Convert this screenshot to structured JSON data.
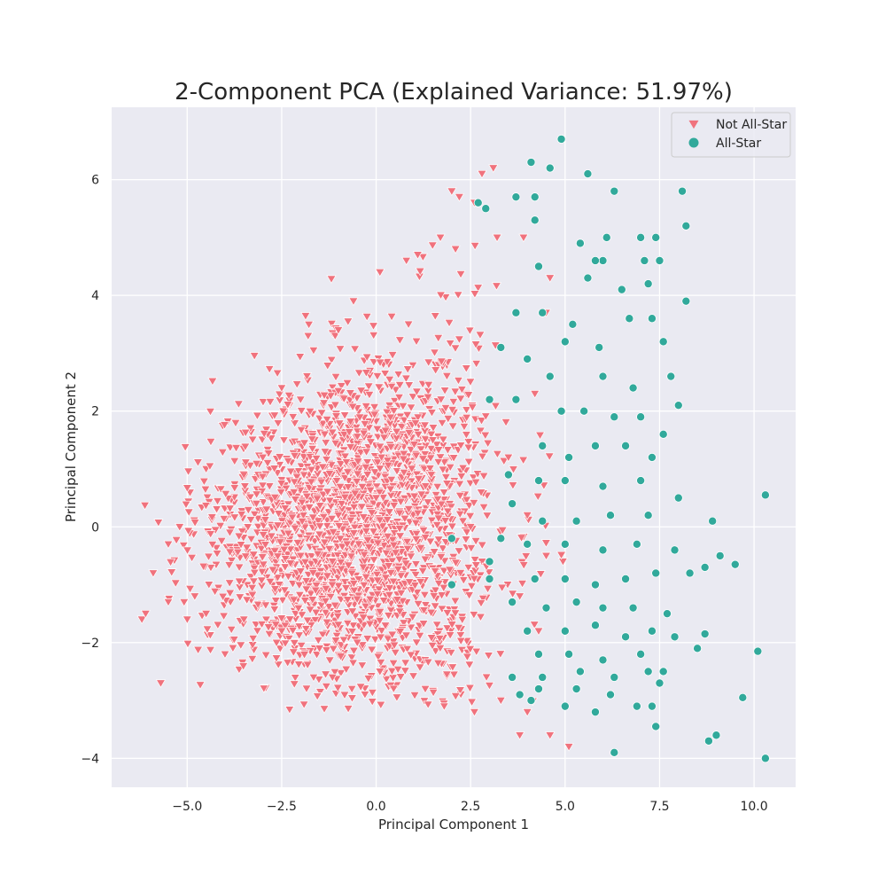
{
  "chart_data": {
    "type": "scatter",
    "title": "2-Component PCA (Explained Variance: 51.97%)",
    "xlabel": "Principal Component 1",
    "ylabel": "Principal Component 2",
    "xlim": [
      -7.0,
      11.1
    ],
    "ylim": [
      -4.5,
      7.25
    ],
    "x_ticks": [
      -5.0,
      -2.5,
      0.0,
      2.5,
      5.0,
      7.5,
      10.0
    ],
    "x_tick_labels": [
      "−5.0",
      "−2.5",
      "0.0",
      "2.5",
      "5.0",
      "7.5",
      "10.0"
    ],
    "y_ticks": [
      -4,
      -2,
      0,
      2,
      4,
      6
    ],
    "y_tick_labels": [
      "−4",
      "−2",
      "0",
      "2",
      "4",
      "6"
    ],
    "grid": true,
    "legend_position": "top-right",
    "series": [
      {
        "name": "Not All-Star",
        "marker": "triangle-down",
        "color": "#f0727d",
        "points": [
          [
            -6.2,
            -1.6
          ],
          [
            -6.1,
            -1.5
          ],
          [
            -5.7,
            -2.7
          ],
          [
            -5.9,
            -0.8
          ],
          [
            -5.5,
            -1.3
          ],
          [
            -5.0,
            -1.6
          ],
          [
            -4.0,
            -2.2
          ],
          [
            -5.5,
            -0.3
          ],
          [
            -5.2,
            0.0
          ],
          [
            -4.5,
            1.0
          ],
          [
            -4.4,
            1.05
          ],
          [
            -3.5,
            0.9
          ],
          [
            -3.0,
            1.2
          ],
          [
            -2.5,
            2.4
          ],
          [
            -2.2,
            1.9
          ],
          [
            -2.0,
            2.2
          ],
          [
            -1.0,
            3.4
          ],
          [
            -0.6,
            3.9
          ],
          [
            0.1,
            4.4
          ],
          [
            0.8,
            4.6
          ],
          [
            1.1,
            4.7
          ],
          [
            1.7,
            5.0
          ],
          [
            2.0,
            5.8
          ],
          [
            2.2,
            5.7
          ],
          [
            2.1,
            4.8
          ],
          [
            3.1,
            6.2
          ],
          [
            2.8,
            6.1
          ],
          [
            2.6,
            5.6
          ],
          [
            3.2,
            5.0
          ],
          [
            -0.5,
            -2.0
          ],
          [
            0.1,
            -2.5
          ],
          [
            1.3,
            -2.8
          ],
          [
            1.8,
            -3.1
          ],
          [
            2.6,
            -3.2
          ],
          [
            3.3,
            -3.0
          ],
          [
            3.8,
            -3.6
          ],
          [
            4.0,
            -3.2
          ],
          [
            4.6,
            -3.6
          ],
          [
            5.1,
            -3.8
          ],
          [
            -1.5,
            -2.1
          ],
          [
            -2.5,
            -1.8
          ],
          [
            -3.5,
            -1.6
          ],
          [
            -4.5,
            -1.5
          ],
          [
            -4.8,
            -1.2
          ],
          [
            4.5,
            3.7
          ],
          [
            4.6,
            4.3
          ],
          [
            3.9,
            5.0
          ],
          [
            4.2,
            2.3
          ],
          [
            3.5,
            1.2
          ],
          [
            4.0,
            0.2
          ],
          [
            4.5,
            -0.5
          ],
          [
            3.8,
            -1.2
          ],
          [
            4.3,
            -1.8
          ],
          [
            -1.8,
            3.3
          ],
          [
            -2.9,
            0.3
          ],
          [
            1.5,
            1.5
          ],
          [
            2.5,
            0.0
          ],
          [
            0.0,
            0.5
          ],
          [
            -1.0,
            0.2
          ],
          [
            -2.0,
            -0.5
          ]
        ]
      },
      {
        "name": "All-Star",
        "marker": "circle",
        "color": "#31a99b",
        "points": [
          [
            4.1,
            6.3
          ],
          [
            4.6,
            6.2
          ],
          [
            5.6,
            6.1
          ],
          [
            4.9,
            6.7
          ],
          [
            3.7,
            5.7
          ],
          [
            4.2,
            5.7
          ],
          [
            2.7,
            5.6
          ],
          [
            2.9,
            5.5
          ],
          [
            6.3,
            5.8
          ],
          [
            8.1,
            5.8
          ],
          [
            8.2,
            5.2
          ],
          [
            4.2,
            5.3
          ],
          [
            6.1,
            5.0
          ],
          [
            7.0,
            5.0
          ],
          [
            7.4,
            5.0
          ],
          [
            7.5,
            4.6
          ],
          [
            5.4,
            4.9
          ],
          [
            6.0,
            4.6
          ],
          [
            5.8,
            4.6
          ],
          [
            7.1,
            4.6
          ],
          [
            4.3,
            4.5
          ],
          [
            5.6,
            4.3
          ],
          [
            6.5,
            4.1
          ],
          [
            7.2,
            4.2
          ],
          [
            8.2,
            3.9
          ],
          [
            3.7,
            3.7
          ],
          [
            4.4,
            3.7
          ],
          [
            5.2,
            3.5
          ],
          [
            6.7,
            3.6
          ],
          [
            7.3,
            3.6
          ],
          [
            5.0,
            3.2
          ],
          [
            5.9,
            3.1
          ],
          [
            7.6,
            3.2
          ],
          [
            3.3,
            3.1
          ],
          [
            4.0,
            2.9
          ],
          [
            7.8,
            2.6
          ],
          [
            4.6,
            2.6
          ],
          [
            6.0,
            2.6
          ],
          [
            6.8,
            2.4
          ],
          [
            3.0,
            2.2
          ],
          [
            3.7,
            2.2
          ],
          [
            4.9,
            2.0
          ],
          [
            5.5,
            2.0
          ],
          [
            6.3,
            1.9
          ],
          [
            7.0,
            1.9
          ],
          [
            8.0,
            2.1
          ],
          [
            7.6,
            1.6
          ],
          [
            4.4,
            1.4
          ],
          [
            5.1,
            1.2
          ],
          [
            5.8,
            1.4
          ],
          [
            6.6,
            1.4
          ],
          [
            7.3,
            1.2
          ],
          [
            3.5,
            0.9
          ],
          [
            4.3,
            0.8
          ],
          [
            5.0,
            0.8
          ],
          [
            6.0,
            0.7
          ],
          [
            7.0,
            0.8
          ],
          [
            8.0,
            0.5
          ],
          [
            10.3,
            0.55
          ],
          [
            3.6,
            0.4
          ],
          [
            4.4,
            0.1
          ],
          [
            5.3,
            0.1
          ],
          [
            6.2,
            0.2
          ],
          [
            7.2,
            0.2
          ],
          [
            8.9,
            0.1
          ],
          [
            3.3,
            -0.2
          ],
          [
            4.0,
            -0.3
          ],
          [
            5.0,
            -0.3
          ],
          [
            6.0,
            -0.4
          ],
          [
            6.9,
            -0.3
          ],
          [
            7.9,
            -0.4
          ],
          [
            9.1,
            -0.5
          ],
          [
            9.5,
            -0.65
          ],
          [
            3.0,
            -0.9
          ],
          [
            4.2,
            -0.9
          ],
          [
            5.0,
            -0.9
          ],
          [
            5.8,
            -1.0
          ],
          [
            6.6,
            -0.9
          ],
          [
            7.4,
            -0.8
          ],
          [
            8.3,
            -0.8
          ],
          [
            8.7,
            -0.7
          ],
          [
            3.6,
            -1.3
          ],
          [
            4.5,
            -1.4
          ],
          [
            5.3,
            -1.3
          ],
          [
            6.0,
            -1.4
          ],
          [
            6.8,
            -1.4
          ],
          [
            7.7,
            -1.5
          ],
          [
            2.0,
            -1.0
          ],
          [
            4.0,
            -1.8
          ],
          [
            5.0,
            -1.8
          ],
          [
            5.8,
            -1.7
          ],
          [
            6.6,
            -1.9
          ],
          [
            7.3,
            -1.8
          ],
          [
            7.9,
            -1.9
          ],
          [
            8.7,
            -1.85
          ],
          [
            4.3,
            -2.2
          ],
          [
            5.1,
            -2.2
          ],
          [
            6.0,
            -2.3
          ],
          [
            7.0,
            -2.2
          ],
          [
            8.5,
            -2.1
          ],
          [
            3.6,
            -2.6
          ],
          [
            4.4,
            -2.6
          ],
          [
            5.4,
            -2.5
          ],
          [
            6.3,
            -2.6
          ],
          [
            7.2,
            -2.5
          ],
          [
            7.6,
            -2.5
          ],
          [
            3.8,
            -2.9
          ],
          [
            4.3,
            -2.8
          ],
          [
            5.3,
            -2.8
          ],
          [
            6.2,
            -2.9
          ],
          [
            7.5,
            -2.7
          ],
          [
            10.1,
            -2.15
          ],
          [
            4.1,
            -3.0
          ],
          [
            5.0,
            -3.1
          ],
          [
            5.8,
            -3.2
          ],
          [
            6.9,
            -3.1
          ],
          [
            7.3,
            -3.1
          ],
          [
            9.7,
            -2.95
          ],
          [
            7.4,
            -3.45
          ],
          [
            6.3,
            -3.9
          ],
          [
            8.8,
            -3.7
          ],
          [
            9.0,
            -3.6
          ],
          [
            10.3,
            -4.0
          ],
          [
            2.0,
            -0.2
          ],
          [
            3.0,
            -0.6
          ]
        ]
      }
    ]
  }
}
